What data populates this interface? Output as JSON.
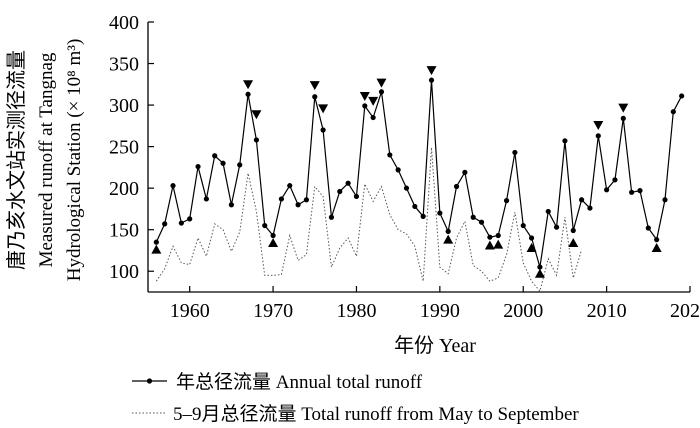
{
  "chart_data": {
    "type": "line",
    "ylabel_cn": "唐乃亥水文站实测径流量",
    "ylabel_en_1": "Measured runoff at Tangnag",
    "ylabel_en_2": "Hydrological Station (× 10⁸ m³)",
    "xlabel": "年份 Year",
    "xlim": [
      1955,
      2020
    ],
    "ylim": [
      75,
      400
    ],
    "xticks": [
      1960,
      1970,
      1980,
      1990,
      2000,
      2010,
      2020
    ],
    "yticks": [
      100,
      150,
      200,
      250,
      300,
      350,
      400
    ],
    "legend": {
      "position": "bottom",
      "annual": "年总径流量  Annual total runoff",
      "may_sep": "5–9月总径流量 Total runoff from May to September"
    },
    "series": [
      {
        "name": "年总径流量 Annual total runoff",
        "style": "solid-line-dot-markers",
        "x": [
          1956,
          1957,
          1958,
          1959,
          1960,
          1961,
          1962,
          1963,
          1964,
          1965,
          1966,
          1967,
          1968,
          1969,
          1970,
          1971,
          1972,
          1973,
          1974,
          1975,
          1976,
          1977,
          1978,
          1979,
          1980,
          1981,
          1982,
          1983,
          1984,
          1985,
          1986,
          1987,
          1988,
          1989,
          1990,
          1991,
          1992,
          1993,
          1994,
          1995,
          1996,
          1997,
          1998,
          1999,
          2000,
          2001,
          2002,
          2003,
          2004,
          2005,
          2006,
          2007,
          2008,
          2009,
          2010,
          2011,
          2012,
          2013,
          2014,
          2015,
          2016,
          2017,
          2018,
          2019
        ],
        "values": [
          135,
          157,
          203,
          158,
          163,
          226,
          187,
          239,
          230,
          180,
          228,
          313,
          258,
          155,
          143,
          187,
          203,
          180,
          186,
          310,
          270,
          165,
          196,
          206,
          190,
          299,
          285,
          316,
          240,
          222,
          200,
          178,
          166,
          330,
          170,
          148,
          202,
          219,
          165,
          159,
          141,
          143,
          185,
          243,
          155,
          140,
          105,
          172,
          153,
          257,
          149,
          186,
          176,
          263,
          198,
          210,
          284,
          195,
          197,
          152,
          138,
          186,
          292,
          311
        ]
      },
      {
        "name": "5–9月总径流量 Total runoff from May to September",
        "style": "dotted-line",
        "x": [
          1956,
          1957,
          1958,
          1959,
          1960,
          1961,
          1962,
          1963,
          1964,
          1965,
          1966,
          1967,
          1968,
          1969,
          1970,
          1971,
          1972,
          1973,
          1974,
          1975,
          1976,
          1977,
          1978,
          1979,
          1980,
          1981,
          1982,
          1983,
          1984,
          1985,
          1986,
          1987,
          1988,
          1989,
          1990,
          1991,
          1992,
          1993,
          1994,
          1995,
          1996,
          1997,
          1998,
          1999,
          2000,
          2001,
          2002,
          2003,
          2004,
          2005,
          2006,
          2007
        ],
        "values": [
          88,
          103,
          130,
          110,
          108,
          140,
          118,
          157,
          150,
          124,
          147,
          218,
          172,
          95,
          95,
          96,
          143,
          113,
          120,
          202,
          190,
          105,
          128,
          140,
          118,
          205,
          184,
          202,
          168,
          150,
          145,
          130,
          88,
          249,
          105,
          97,
          140,
          160,
          107,
          100,
          88,
          92,
          120,
          171,
          110,
          88,
          76,
          115,
          95,
          165,
          92,
          126
        ]
      }
    ],
    "markers": {
      "down_triangle": [
        [
          1967,
          325
        ],
        [
          1968,
          289
        ],
        [
          1975,
          324
        ],
        [
          1976,
          296
        ],
        [
          1981,
          311
        ],
        [
          1982,
          305
        ],
        [
          1983,
          327
        ],
        [
          1989,
          342
        ],
        [
          2009,
          276
        ],
        [
          2012,
          297
        ]
      ],
      "up_triangle": [
        [
          1956,
          126
        ],
        [
          1970,
          134
        ],
        [
          1991,
          138
        ],
        [
          1996,
          131
        ],
        [
          1997,
          132
        ],
        [
          2001,
          128
        ],
        [
          2002,
          97
        ],
        [
          2006,
          134
        ],
        [
          2016,
          128
        ]
      ]
    }
  }
}
